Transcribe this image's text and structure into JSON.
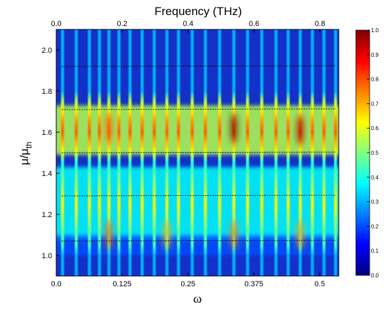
{
  "chart_data": {
    "type": "heatmap",
    "title": "Frequency (THz)",
    "xlabel": "ω",
    "ylabel_main": "μ/μ",
    "ylabel_sub": "th",
    "xlim": [
      0.0,
      0.536
    ],
    "ylim": [
      0.9,
      2.1
    ],
    "top_axis": {
      "label": "Frequency (THz)",
      "ticks": [
        "0.0",
        "0.2",
        "0.4",
        "0.6",
        "0.8"
      ],
      "values": [
        0.0,
        0.2,
        0.4,
        0.6,
        0.8
      ],
      "max": 0.857
    },
    "x_ticks": [
      "0.0",
      "0.125",
      "0.25",
      "0.375",
      "0.5"
    ],
    "x_tick_values": [
      0.0,
      0.125,
      0.25,
      0.375,
      0.5
    ],
    "y_ticks": [
      "1.0",
      "1.2",
      "1.4",
      "1.6",
      "1.8",
      "2.0"
    ],
    "y_tick_values": [
      1.0,
      1.2,
      1.4,
      1.6,
      1.8,
      2.0
    ],
    "colorbar": {
      "ticks": [
        "0.0",
        "0.1",
        "0.2",
        "0.3",
        "0.4",
        "0.5",
        "0.6",
        "0.7",
        "0.8",
        "0.9",
        "1.0"
      ],
      "values": [
        0.0,
        0.1,
        0.2,
        0.3,
        0.4,
        0.5,
        0.6,
        0.7,
        0.8,
        0.9,
        1.0
      ],
      "colormap": "jet"
    },
    "dashed_lines_y": [
      1.07,
      1.29,
      1.5,
      1.71,
      1.92
    ],
    "resonance_lines_x": [
      0.012,
      0.038,
      0.063,
      0.082,
      0.1,
      0.119,
      0.14,
      0.163,
      0.186,
      0.21,
      0.232,
      0.258,
      0.283,
      0.31,
      0.337,
      0.363,
      0.39,
      0.417,
      0.44,
      0.463,
      0.486,
      0.508,
      0.53
    ],
    "hotspots": [
      {
        "x": 0.337,
        "y": 1.62,
        "intensity": 1.0
      },
      {
        "x": 0.463,
        "y": 1.61,
        "intensity": 0.95
      },
      {
        "x": 0.1,
        "y": 1.62,
        "intensity": 0.78
      },
      {
        "x": 0.1,
        "y": 1.1,
        "intensity": 0.78
      },
      {
        "x": 0.337,
        "y": 1.1,
        "intensity": 0.75
      },
      {
        "x": 0.463,
        "y": 1.1,
        "intensity": 0.72
      },
      {
        "x": 0.21,
        "y": 1.1,
        "intensity": 0.7
      }
    ],
    "bands": [
      {
        "y_center": 1.61,
        "y_half_width": 0.12,
        "level": 0.55
      },
      {
        "y_center": 1.25,
        "y_half_width": 0.18,
        "level": 0.38
      },
      {
        "y_center": 1.05,
        "y_half_width": 0.05,
        "level": 0.2
      }
    ]
  }
}
